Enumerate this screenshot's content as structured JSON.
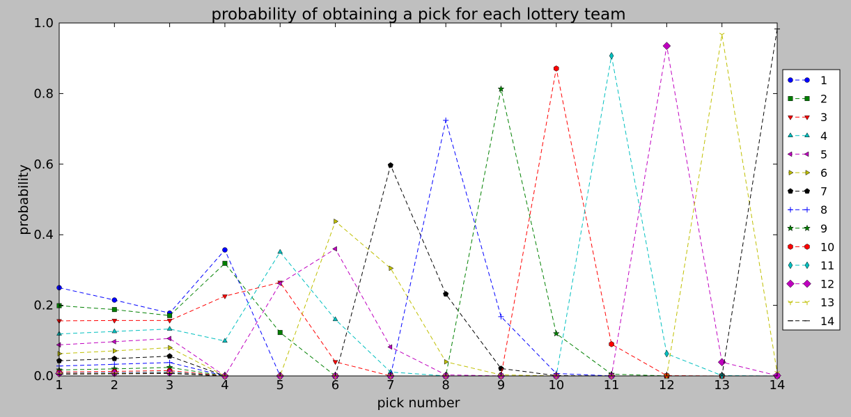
{
  "chart_data": {
    "type": "line",
    "title": "probability of obtaining a pick for each lottery team",
    "xlabel": "pick number",
    "ylabel": "probability",
    "xlim": [
      1,
      14
    ],
    "ylim": [
      0.0,
      1.0
    ],
    "xticks": [
      "1",
      "2",
      "3",
      "4",
      "5",
      "6",
      "7",
      "8",
      "9",
      "10",
      "11",
      "12",
      "13",
      "14"
    ],
    "yticks": [
      "0.0",
      "0.2",
      "0.4",
      "0.6",
      "0.8",
      "1.0"
    ],
    "grid": false,
    "legend_position": "right",
    "x": [
      1,
      2,
      3,
      4,
      5,
      6,
      7,
      8,
      9,
      10,
      11,
      12,
      13,
      14
    ],
    "series": [
      {
        "name": "1",
        "color": "#0000ff",
        "marker": "circle",
        "values": [
          0.25,
          0.215,
          0.178,
          0.357,
          0,
          0,
          0,
          0,
          0,
          0,
          0,
          0,
          0,
          0
        ]
      },
      {
        "name": "2",
        "color": "#008000",
        "marker": "square",
        "values": [
          0.199,
          0.188,
          0.171,
          0.319,
          0.123,
          0,
          0,
          0,
          0,
          0,
          0,
          0,
          0,
          0
        ]
      },
      {
        "name": "3",
        "color": "#ff0000",
        "marker": "triangle-down",
        "values": [
          0.156,
          0.157,
          0.157,
          0.226,
          0.265,
          0.04,
          0,
          0,
          0,
          0,
          0,
          0,
          0,
          0
        ]
      },
      {
        "name": "4",
        "color": "#00bfbf",
        "marker": "triangle-up",
        "values": [
          0.119,
          0.126,
          0.133,
          0.099,
          0.351,
          0.16,
          0.011,
          0,
          0,
          0,
          0,
          0,
          0,
          0
        ]
      },
      {
        "name": "5",
        "color": "#bf00bf",
        "marker": "triangle-left",
        "values": [
          0.088,
          0.097,
          0.106,
          0.0,
          0.262,
          0.36,
          0.082,
          0.003,
          0,
          0,
          0,
          0,
          0,
          0
        ]
      },
      {
        "name": "6",
        "color": "#bfbf00",
        "marker": "triangle-right",
        "values": [
          0.063,
          0.071,
          0.08,
          0.0,
          0.0,
          0.438,
          0.305,
          0.04,
          0.003,
          0,
          0,
          0,
          0,
          0
        ]
      },
      {
        "name": "7",
        "color": "#000000",
        "marker": "pentagon",
        "values": [
          0.043,
          0.049,
          0.056,
          0.0,
          0.0,
          0.0,
          0.597,
          0.232,
          0.021,
          0.001,
          0,
          0,
          0,
          0
        ]
      },
      {
        "name": "8",
        "color": "#0000ff",
        "marker": "plus",
        "values": [
          0.028,
          0.033,
          0.038,
          0,
          0,
          0,
          0,
          0.724,
          0.168,
          0.007,
          0.0,
          0,
          0,
          0
        ]
      },
      {
        "name": "9",
        "color": "#008000",
        "marker": "star",
        "values": [
          0.017,
          0.02,
          0.024,
          0,
          0,
          0,
          0,
          0,
          0.813,
          0.12,
          0.005,
          0.0,
          0,
          0
        ]
      },
      {
        "name": "10",
        "color": "#ff0000",
        "marker": "hexagon",
        "values": [
          0.011,
          0.013,
          0.015,
          0,
          0,
          0,
          0,
          0,
          0,
          0.871,
          0.09,
          0.001,
          0,
          0
        ]
      },
      {
        "name": "11",
        "color": "#00bfbf",
        "marker": "thin-diamond",
        "values": [
          0.008,
          0.009,
          0.011,
          0,
          0,
          0,
          0,
          0,
          0,
          0,
          0.907,
          0.063,
          0.001,
          0
        ]
      },
      {
        "name": "12",
        "color": "#bf00bf",
        "marker": "diamond",
        "values": [
          0.007,
          0.008,
          0.009,
          0,
          0,
          0,
          0,
          0,
          0,
          0,
          0,
          0.935,
          0.039,
          0.001
        ]
      },
      {
        "name": "13",
        "color": "#bfbf00",
        "marker": "tri",
        "values": [
          0.006,
          0.007,
          0.008,
          0,
          0,
          0,
          0,
          0,
          0,
          0,
          0,
          0,
          0.967,
          0.009
        ]
      },
      {
        "name": "14",
        "color": "#000000",
        "marker": "hline",
        "values": [
          0.005,
          0.006,
          0.007,
          0,
          0,
          0,
          0,
          0,
          0,
          0,
          0,
          0,
          0,
          0.983
        ]
      }
    ]
  }
}
